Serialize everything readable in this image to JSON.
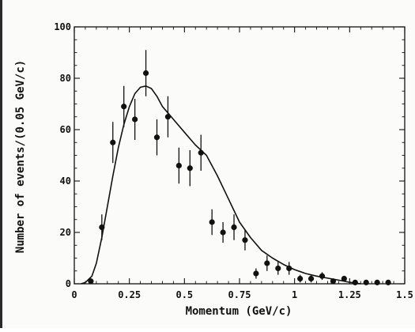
{
  "chart_data": {
    "type": "scatter",
    "title": "",
    "xlabel": "Momentum (GeV/c)",
    "ylabel": "Number of events/(0.05 GeV/c)",
    "xlim": [
      0,
      1.5
    ],
    "ylim": [
      0,
      100
    ],
    "grid": false,
    "x_ticks": [
      0,
      0.25,
      0.5,
      0.75,
      1,
      1.25,
      1.5
    ],
    "x_tick_labels": [
      "0",
      "0.25",
      "0.5",
      "0.75",
      "1",
      "1.25",
      "1.5"
    ],
    "y_ticks": [
      0,
      20,
      40,
      60,
      80,
      100
    ],
    "y_tick_labels": [
      "0",
      "20",
      "40",
      "60",
      "80",
      "100"
    ],
    "series": [
      {
        "kind": "points_with_error_bars",
        "color": "#111111",
        "points": [
          {
            "x": 0.075,
            "y": 1,
            "err": 0
          },
          {
            "x": 0.125,
            "y": 22,
            "err": 5
          },
          {
            "x": 0.175,
            "y": 55,
            "err": 8
          },
          {
            "x": 0.225,
            "y": 69,
            "err": 8
          },
          {
            "x": 0.275,
            "y": 64,
            "err": 8
          },
          {
            "x": 0.325,
            "y": 82,
            "err": 9
          },
          {
            "x": 0.375,
            "y": 57,
            "err": 7
          },
          {
            "x": 0.425,
            "y": 65,
            "err": 8
          },
          {
            "x": 0.475,
            "y": 46,
            "err": 7
          },
          {
            "x": 0.525,
            "y": 45,
            "err": 7
          },
          {
            "x": 0.575,
            "y": 51,
            "err": 7
          },
          {
            "x": 0.625,
            "y": 24,
            "err": 5
          },
          {
            "x": 0.675,
            "y": 20,
            "err": 4
          },
          {
            "x": 0.725,
            "y": 22,
            "err": 5
          },
          {
            "x": 0.775,
            "y": 17,
            "err": 4
          },
          {
            "x": 0.825,
            "y": 4,
            "err": 2
          },
          {
            "x": 0.875,
            "y": 8,
            "err": 3
          },
          {
            "x": 0.925,
            "y": 6,
            "err": 2.5
          },
          {
            "x": 0.975,
            "y": 6,
            "err": 2.5
          },
          {
            "x": 1.025,
            "y": 2,
            "err": 1.5
          },
          {
            "x": 1.075,
            "y": 2,
            "err": 1.5
          },
          {
            "x": 1.125,
            "y": 3,
            "err": 1.5
          },
          {
            "x": 1.175,
            "y": 1,
            "err": 1
          },
          {
            "x": 1.225,
            "y": 2,
            "err": 1
          },
          {
            "x": 1.275,
            "y": 0.5,
            "err": 0
          },
          {
            "x": 1.325,
            "y": 0.5,
            "err": 0
          },
          {
            "x": 1.375,
            "y": 0.5,
            "err": 0
          },
          {
            "x": 1.425,
            "y": 0.5,
            "err": 0
          }
        ]
      },
      {
        "kind": "curve",
        "color": "#111111",
        "x": [
          0.03,
          0.05,
          0.08,
          0.1,
          0.125,
          0.15,
          0.175,
          0.2,
          0.225,
          0.25,
          0.275,
          0.3,
          0.325,
          0.35,
          0.375,
          0.4,
          0.45,
          0.5,
          0.55,
          0.6,
          0.65,
          0.7,
          0.75,
          0.8,
          0.85,
          0.9,
          0.95,
          1.0,
          1.05,
          1.1,
          1.15,
          1.2,
          1.25,
          1.3
        ],
        "y": [
          0,
          0.5,
          3,
          8,
          18,
          30,
          42,
          53,
          62,
          69,
          74,
          76.5,
          77,
          76,
          73,
          69,
          64,
          59,
          54,
          50,
          42,
          33,
          24,
          18,
          13,
          10,
          7.5,
          5.5,
          4,
          3,
          2.2,
          1.4,
          0.6,
          0
        ]
      }
    ]
  }
}
